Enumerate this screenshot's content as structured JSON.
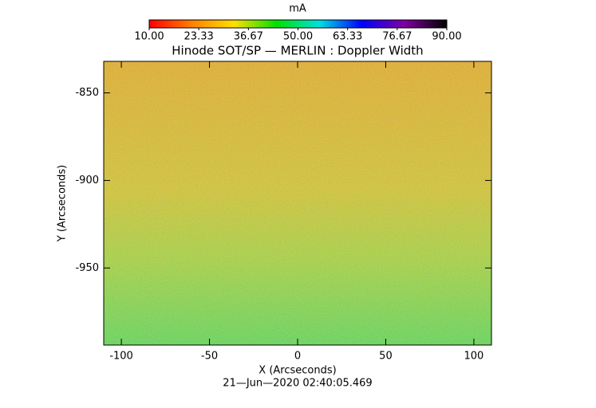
{
  "chart_data": {
    "type": "heatmap",
    "title": "Hinode SOT/SP — MERLIN : Doppler Width",
    "xlabel": "X (Arcseconds)",
    "ylabel": "Y (Arcseconds)",
    "footer": "21—Jun—2020 02:40:05.469",
    "xlim": [
      -110,
      110
    ],
    "xticks": [
      -100,
      -50,
      0,
      50,
      100
    ],
    "ylim": [
      -994,
      -832
    ],
    "yticks": [
      -850,
      -900,
      -950
    ],
    "colorbar": {
      "label": "mA",
      "lim": [
        10,
        90
      ],
      "ticks": [
        {
          "value": 10,
          "label": "10.00"
        },
        23.33,
        36.67,
        {
          "value": 50,
          "label": "50.00"
        },
        63.33,
        76.67,
        {
          "value": 90,
          "label": "90.00"
        }
      ],
      "colors": [
        "#ff0000",
        "#ff8000",
        "#ffe000",
        "#00e000",
        "#00e0e0",
        "#0000ff",
        "#8000a0",
        "#000000"
      ]
    }
  }
}
